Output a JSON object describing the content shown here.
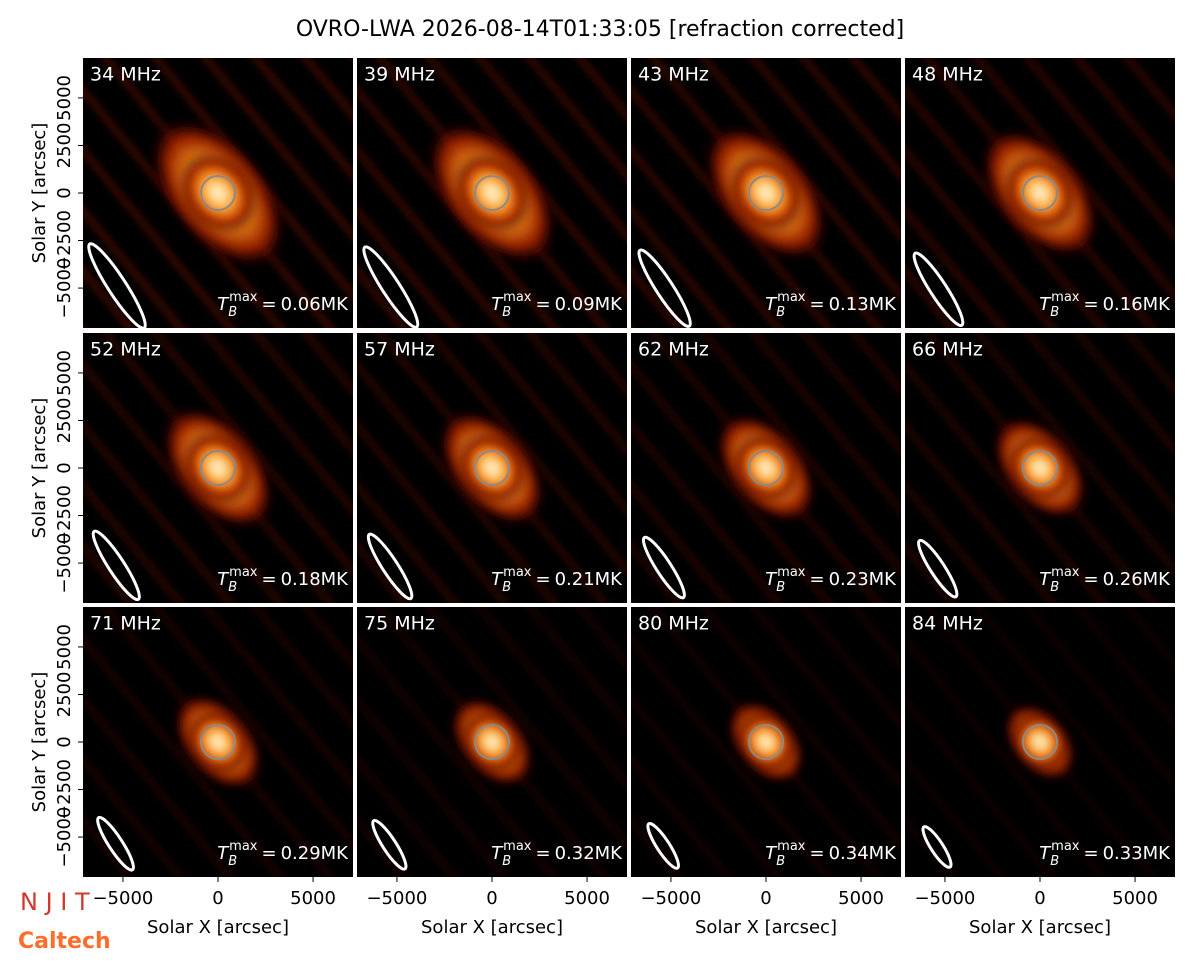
{
  "title": "OVRO-LWA 2026-08-14T01:33:05 [refraction corrected]",
  "xlabel": "Solar X [arcsec]",
  "ylabel": "Solar Y [arcsec]",
  "xlim": [
    -7100,
    7100
  ],
  "ylim": [
    -7100,
    7100
  ],
  "xticks": [
    {
      "value": -5000,
      "label": "−5000"
    },
    0,
    5000
  ],
  "yticks": [
    {
      "value": -5000,
      "label": "−5000"
    },
    {
      "value": -2500,
      "label": "−2500"
    },
    0,
    2500,
    5000
  ],
  "tb_symbol": "T",
  "tb_sub": "B",
  "tb_sup": "max",
  "tb_eq": "=",
  "panels": [
    {
      "freq": "34 MHz",
      "tb_max": "0.06MK"
    },
    {
      "freq": "39 MHz",
      "tb_max": "0.09MK"
    },
    {
      "freq": "43 MHz",
      "tb_max": "0.13MK"
    },
    {
      "freq": "48 MHz",
      "tb_max": "0.16MK"
    },
    {
      "freq": "52 MHz",
      "tb_max": "0.18MK"
    },
    {
      "freq": "57 MHz",
      "tb_max": "0.21MK"
    },
    {
      "freq": "62 MHz",
      "tb_max": "0.23MK"
    },
    {
      "freq": "66 MHz",
      "tb_max": "0.26MK"
    },
    {
      "freq": "71 MHz",
      "tb_max": "0.29MK"
    },
    {
      "freq": "75 MHz",
      "tb_max": "0.32MK"
    },
    {
      "freq": "80 MHz",
      "tb_max": "0.34MK"
    },
    {
      "freq": "84 MHz",
      "tb_max": "0.33MK"
    }
  ],
  "logos": {
    "njit": "N J I T",
    "caltech": "Caltech"
  }
}
